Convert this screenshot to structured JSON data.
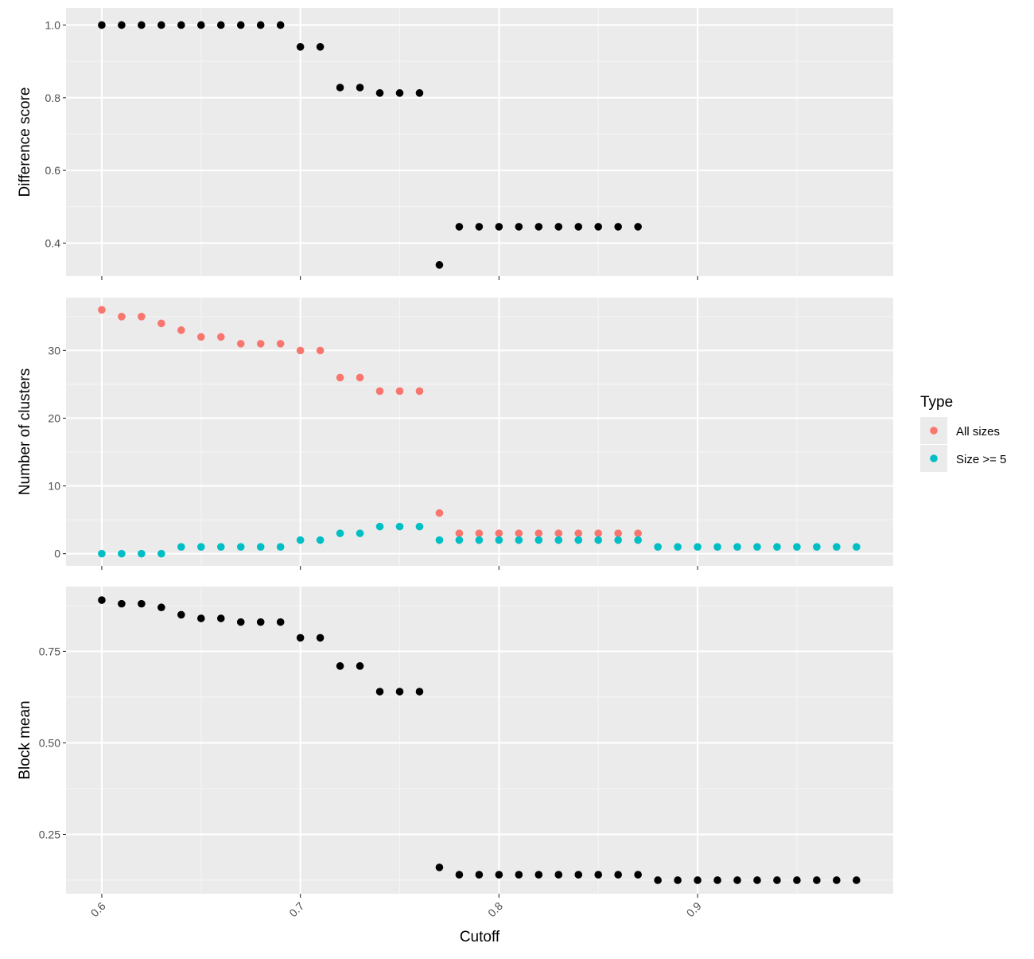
{
  "colors": {
    "panel_bg": "#EBEBEB",
    "grid_major": "#FFFFFF",
    "grid_minor": "#F5F5F5",
    "all_sizes": "#F8766D",
    "size_ge_5": "#00BFC4",
    "black_points": "#000000"
  },
  "legend": {
    "title": "Type",
    "placement": "right",
    "items": [
      {
        "label": "All sizes",
        "color": "#F8766D"
      },
      {
        "label": "Size >= 5",
        "color": "#00BFC4"
      }
    ]
  },
  "x_axis": {
    "label": "Cutoff",
    "range": [
      0.582,
      0.9985
    ],
    "ticks": [
      0.6,
      0.7,
      0.8,
      0.9
    ],
    "tick_labels": [
      "0.6",
      "0.7",
      "0.8",
      "0.9"
    ],
    "tick_label_rotation": -45
  },
  "chart_data": [
    {
      "type": "scatter",
      "ylabel": "Difference score",
      "xlabel": "Cutoff",
      "ylim": [
        0.309,
        1.047
      ],
      "y_ticks": [
        0.4,
        0.6,
        0.8,
        1.0
      ],
      "y_tick_labels": [
        "0.4",
        "0.6",
        "0.8",
        "1.0"
      ],
      "grid": true,
      "series": [
        {
          "color": "#000000",
          "x": [
            0.6,
            0.61,
            0.62,
            0.63,
            0.64,
            0.65,
            0.66,
            0.67,
            0.68,
            0.69,
            0.7,
            0.71,
            0.72,
            0.73,
            0.74,
            0.75,
            0.76,
            0.77,
            0.78,
            0.79,
            0.8,
            0.81,
            0.82,
            0.83,
            0.84,
            0.85,
            0.86,
            0.87
          ],
          "values": [
            1.0,
            1.0,
            1.0,
            1.0,
            1.0,
            1.0,
            1.0,
            1.0,
            1.0,
            1.0,
            0.94,
            0.94,
            0.828,
            0.828,
            0.813,
            0.813,
            0.813,
            0.34,
            0.445,
            0.445,
            0.445,
            0.445,
            0.445,
            0.445,
            0.445,
            0.445,
            0.445,
            0.445
          ]
        }
      ]
    },
    {
      "type": "scatter",
      "ylabel": "Number of clusters",
      "xlabel": "Cutoff",
      "ylim": [
        -1.8,
        37.8
      ],
      "y_ticks": [
        0,
        10,
        20,
        30
      ],
      "y_tick_labels": [
        "0",
        "10",
        "20",
        "30"
      ],
      "grid": true,
      "series": [
        {
          "name": "All sizes",
          "color": "#F8766D",
          "x": [
            0.6,
            0.61,
            0.62,
            0.63,
            0.64,
            0.65,
            0.66,
            0.67,
            0.68,
            0.69,
            0.7,
            0.71,
            0.72,
            0.73,
            0.74,
            0.75,
            0.76,
            0.77,
            0.78,
            0.79,
            0.8,
            0.81,
            0.82,
            0.83,
            0.84,
            0.85,
            0.86,
            0.87
          ],
          "values": [
            36,
            35,
            35,
            34,
            33,
            32,
            32,
            31,
            31,
            31,
            30,
            30,
            26,
            26,
            24,
            24,
            24,
            6,
            3,
            3,
            3,
            3,
            3,
            3,
            3,
            3,
            3,
            3
          ]
        },
        {
          "name": "Size >= 5",
          "color": "#00BFC4",
          "x": [
            0.6,
            0.61,
            0.62,
            0.63,
            0.64,
            0.65,
            0.66,
            0.67,
            0.68,
            0.69,
            0.7,
            0.71,
            0.72,
            0.73,
            0.74,
            0.75,
            0.76,
            0.77,
            0.78,
            0.79,
            0.8,
            0.81,
            0.82,
            0.83,
            0.84,
            0.85,
            0.86,
            0.87,
            0.88,
            0.89,
            0.9,
            0.91,
            0.92,
            0.93,
            0.94,
            0.95,
            0.96,
            0.97,
            0.98
          ],
          "values": [
            0,
            0,
            0,
            0,
            1,
            1,
            1,
            1,
            1,
            1,
            2,
            2,
            3,
            3,
            4,
            4,
            4,
            2,
            2,
            2,
            2,
            2,
            2,
            2,
            2,
            2,
            2,
            2,
            1,
            1,
            1,
            1,
            1,
            1,
            1,
            1,
            1,
            1,
            1
          ]
        }
      ]
    },
    {
      "type": "scatter",
      "ylabel": "Block mean",
      "xlabel": "Cutoff",
      "ylim": [
        0.088,
        0.927
      ],
      "y_ticks": [
        0.25,
        0.5,
        0.75
      ],
      "y_tick_labels": [
        "0.25",
        "0.50",
        "0.75"
      ],
      "grid": true,
      "series": [
        {
          "color": "#000000",
          "x": [
            0.6,
            0.61,
            0.62,
            0.63,
            0.64,
            0.65,
            0.66,
            0.67,
            0.68,
            0.69,
            0.7,
            0.71,
            0.72,
            0.73,
            0.74,
            0.75,
            0.76,
            0.77,
            0.78,
            0.79,
            0.8,
            0.81,
            0.82,
            0.83,
            0.84,
            0.85,
            0.86,
            0.87,
            0.88,
            0.89,
            0.9,
            0.91,
            0.92,
            0.93,
            0.94,
            0.95,
            0.96,
            0.97,
            0.98
          ],
          "values": [
            0.89,
            0.88,
            0.88,
            0.87,
            0.85,
            0.84,
            0.84,
            0.83,
            0.83,
            0.83,
            0.787,
            0.787,
            0.71,
            0.71,
            0.64,
            0.64,
            0.64,
            0.16,
            0.14,
            0.14,
            0.14,
            0.14,
            0.14,
            0.14,
            0.14,
            0.14,
            0.14,
            0.14,
            0.125,
            0.125,
            0.125,
            0.125,
            0.125,
            0.125,
            0.125,
            0.125,
            0.125,
            0.125,
            0.125
          ]
        }
      ]
    }
  ]
}
